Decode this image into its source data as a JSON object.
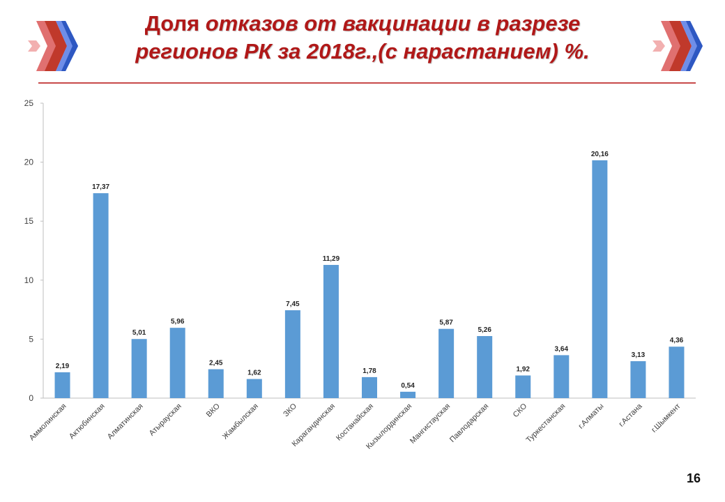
{
  "slide": {
    "title_lead": "Доля ",
    "title_rest_line1": "отказов от вакцинации в разрезе",
    "title_line2": "регионов  РК за 2018г.,(с нарастанием) %.",
    "page_number": "16"
  },
  "colors": {
    "bar": "#5b9bd5",
    "title": "#b01818",
    "rule": "#c84a4a",
    "logo_red": "#c0392b",
    "logo_blue": "#2e58c2"
  },
  "chart_data": {
    "type": "bar",
    "categories": [
      "Аммолинская",
      "Актюбинская",
      "Алматинская",
      "Атырауская",
      "ВКО",
      "Жамбылская",
      "ЗКО",
      "Карагандинская",
      "Костанайская",
      "Кызылординская",
      "Мангистауская",
      "Павлодарская",
      "СКО",
      "Туркестанская",
      "г.Алматы",
      "г.Астана",
      "г.Шымкент"
    ],
    "values": [
      2.19,
      17.37,
      5.01,
      5.96,
      2.45,
      1.62,
      7.45,
      11.29,
      1.78,
      0.54,
      5.87,
      5.26,
      1.92,
      3.64,
      20.16,
      3.13,
      4.36
    ],
    "data_labels": [
      "2,19",
      "17,37",
      "5,01",
      "5,96",
      "2,45",
      "1,62",
      "7,45",
      "11,29",
      "1,78",
      "0,54",
      "5,87",
      "5,26",
      "1,92",
      "3,64",
      "20,16",
      "3,13",
      "4,36"
    ],
    "yticks": [
      0,
      5,
      10,
      15,
      20,
      25
    ],
    "ytick_labels": [
      "0",
      "5",
      "10",
      "15",
      "20",
      "25"
    ],
    "ylim": [
      0,
      25
    ],
    "title": "",
    "xlabel": "",
    "ylabel": "",
    "grid": false,
    "legend": "none"
  }
}
